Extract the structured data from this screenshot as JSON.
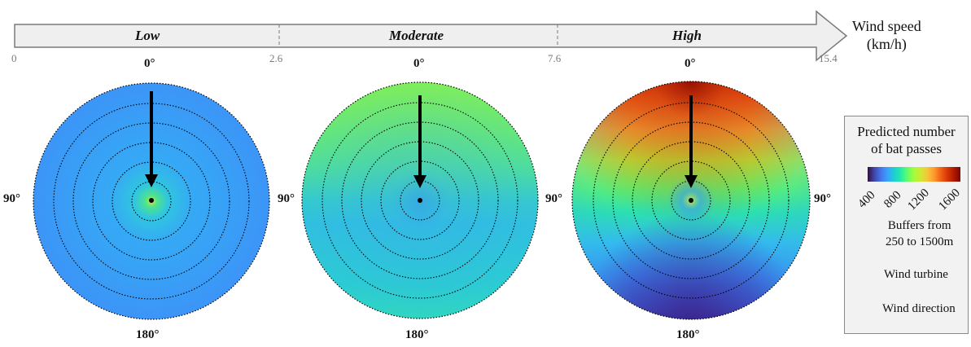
{
  "speed_axis": {
    "segments": [
      "Low",
      "Moderate",
      "High"
    ],
    "ticks": [
      "0",
      "2.6",
      "7.6",
      "15.4"
    ],
    "label_line1": "Wind speed",
    "label_line2": "(km/h)"
  },
  "panels": [
    {
      "name": "Low",
      "top": "0°",
      "left": "90°",
      "bottom": "180°"
    },
    {
      "name": "Moderate",
      "top": "0°",
      "left": "90°",
      "bottom": "180°"
    },
    {
      "name": "High",
      "top": "0°",
      "left": "90°",
      "right": "90°",
      "bottom": "180°"
    }
  ],
  "legend": {
    "title_line1": "Predicted number",
    "title_line2": "of bat passes",
    "colorbar_ticks": [
      "400",
      "800",
      "1200",
      "1600"
    ],
    "buffers_line1": "Buffers from",
    "buffers_line2": "250 to 1500m",
    "turbine_label": "Wind turbine",
    "direction_label": "Wind direction"
  },
  "colors": {
    "arrow_band": "#efefef",
    "buffer_ring": "#000000"
  }
}
